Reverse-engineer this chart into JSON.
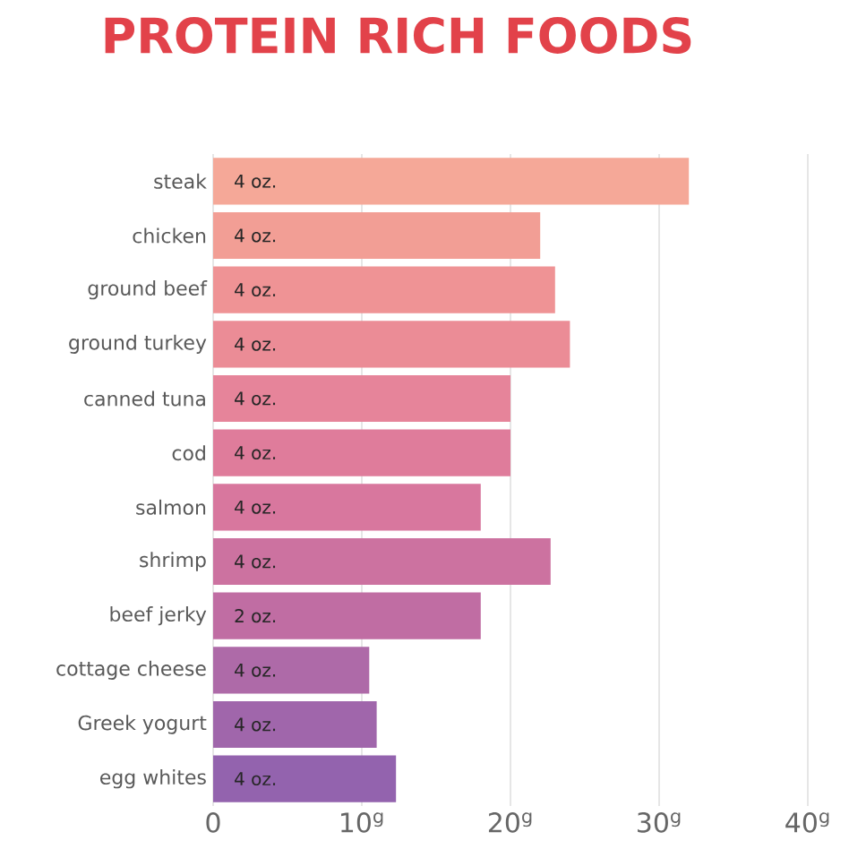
{
  "chart_data": {
    "type": "bar",
    "orientation": "horizontal",
    "title": "PROTEIN RICH FOODS",
    "categories": [
      "steak",
      "chicken",
      "ground beef",
      "ground turkey",
      "canned tuna",
      "cod",
      "salmon",
      "shrimp",
      "beef jerky",
      "cottage cheese",
      "Greek yogurt",
      "egg whites"
    ],
    "values": [
      32,
      22,
      23,
      24,
      20,
      20,
      18,
      22.7,
      18,
      10.5,
      11,
      12.3
    ],
    "colors": [
      "#f5a898",
      "#f29e95",
      "#ef9395",
      "#eb8c96",
      "#e6849a",
      "#df7c9b",
      "#d8779e",
      "#cc72a0",
      "#c06da3",
      "#ae6aa8",
      "#a066ab",
      "#9363ae"
    ],
    "xlim": [
      0,
      40
    ],
    "xticks": [
      0,
      {
        "value": 10,
        "label": "10$^{g}$"
      },
      {
        "value": 20,
        "label": "20$^{g}$"
      },
      {
        "value": 30,
        "label": "30$^{g}$"
      },
      {
        "value": 40,
        "label": "40$^{g}$"
      }
    ],
    "grid": "x",
    "annotations": [
      {
        "text": "4 oz.",
        "y": "steak"
      },
      {
        "text": "4 oz.",
        "y": "chicken"
      },
      {
        "text": "4 oz.",
        "y": "ground beef"
      },
      {
        "text": "4 oz.",
        "y": "ground turkey"
      },
      {
        "text": "4 oz.",
        "y": "canned tuna"
      },
      {
        "text": "4 oz.",
        "y": "cod"
      },
      {
        "text": "4 oz.",
        "y": "salmon"
      },
      {
        "text": "4 oz.",
        "y": "shrimp"
      },
      {
        "text": "2 oz.",
        "y": "beef jerky"
      },
      {
        "text": "4 oz.",
        "y": "cottage cheese"
      },
      {
        "text": "4 oz.",
        "y": "Greek yogurt"
      },
      {
        "text": "4 oz.",
        "y": "egg whites"
      }
    ]
  }
}
